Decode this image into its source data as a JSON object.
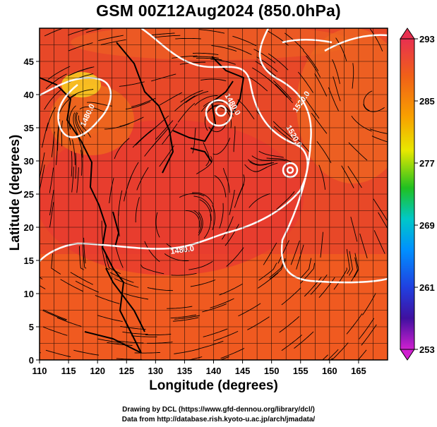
{
  "title": "GSM 00Z12Aug2024 (850.0hPa)",
  "x_axis_label": "Longitude (degrees)",
  "y_axis_label": "Latitude  (degrees)",
  "x_ticks": [
    "110",
    "115",
    "120",
    "125",
    "130",
    "135",
    "140",
    "145",
    "150",
    "155",
    "160",
    "165"
  ],
  "y_ticks": [
    "0",
    "5",
    "10",
    "15",
    "20",
    "25",
    "30",
    "35",
    "40",
    "45"
  ],
  "colorbar_ticks": [
    "293",
    "285",
    "277",
    "269",
    "261",
    "253"
  ],
  "colorbar_colors": [
    "#e83050",
    "#f06018",
    "#f8a000",
    "#e8e800",
    "#20c020",
    "#00c8c8",
    "#0090ff",
    "#2040e0",
    "#4010a0",
    "#d020d0"
  ],
  "contour_labels": [
    "1480.0",
    "1480.0",
    "1520.0",
    "1520.0",
    "1480.0"
  ],
  "credit_line1": "Drawing by DCL (https://www.gfd-dennou.org/library/dcl/)",
  "credit_line2": "Data from http://database.rish.kyoto-u.ac.jp/arch/jmadata/",
  "map": {
    "projection": "lon-lat",
    "lon_range": [
      110,
      170
    ],
    "lat_range": [
      0,
      50
    ],
    "field_colors": [
      "#e84828",
      "#f06020",
      "#e83a30",
      "#f87818",
      "#f8c820"
    ]
  }
}
